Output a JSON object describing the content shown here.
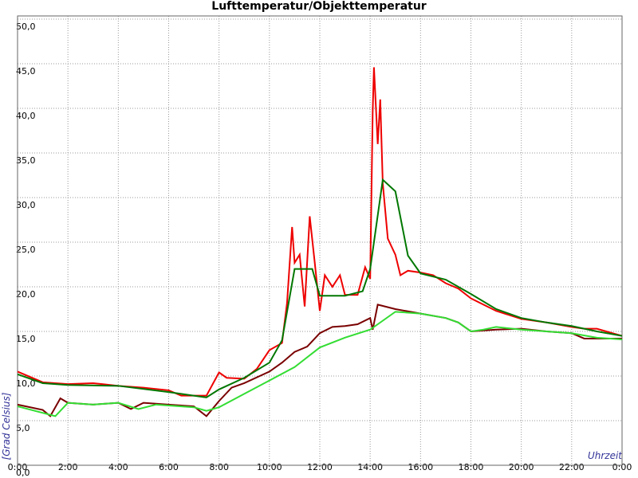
{
  "chart_data": {
    "type": "line",
    "title": "Lufttemperatur/Objekttemperatur",
    "ylabel": "[Grad Celsius]",
    "xlabel": "Uhrzeit",
    "xlim": [
      0,
      24
    ],
    "ylim": [
      0,
      50
    ],
    "grid": true,
    "xticks": [
      {
        "value": 0,
        "label": "0:00"
      },
      {
        "value": 2,
        "label": "2:00"
      },
      {
        "value": 4,
        "label": "4:00"
      },
      {
        "value": 6,
        "label": "6:00"
      },
      {
        "value": 8,
        "label": "8:00"
      },
      {
        "value": 10,
        "label": "10:00"
      },
      {
        "value": 12,
        "label": "12:00"
      },
      {
        "value": 14,
        "label": "14:00"
      },
      {
        "value": 16,
        "label": "16:00"
      },
      {
        "value": 18,
        "label": "18:00"
      },
      {
        "value": 20,
        "label": "20:00"
      },
      {
        "value": 22,
        "label": "22:00"
      },
      {
        "value": 24,
        "label": "0:00"
      }
    ],
    "yticks": [
      {
        "value": 0,
        "label": "0,0"
      },
      {
        "value": 5,
        "label": "5,0"
      },
      {
        "value": 10,
        "label": "10,0"
      },
      {
        "value": 15,
        "label": "15,0"
      },
      {
        "value": 20,
        "label": "20,0"
      },
      {
        "value": 25,
        "label": "25,0"
      },
      {
        "value": 30,
        "label": "30,0"
      },
      {
        "value": 35,
        "label": "35,0"
      },
      {
        "value": 40,
        "label": "40,0"
      },
      {
        "value": 45,
        "label": "45,0"
      },
      {
        "value": 50,
        "label": "50,0"
      }
    ],
    "series": [
      {
        "color": "#ee0000",
        "x": [
          0,
          1,
          2,
          3,
          4,
          5,
          6,
          6.5,
          7.5,
          8,
          8.3,
          9,
          9.5,
          10,
          10.5,
          10.7,
          10.9,
          11,
          11.2,
          11.4,
          11.6,
          11.8,
          12,
          12.2,
          12.5,
          12.8,
          13,
          13.5,
          13.8,
          14,
          14.1,
          14.15,
          14.3,
          14.4,
          14.5,
          14.7,
          15,
          15.2,
          15.5,
          16,
          16.5,
          17,
          17.5,
          18,
          19,
          20,
          21,
          22,
          22.5,
          23,
          24
        ],
        "values": [
          10.5,
          9.3,
          9.1,
          9.2,
          8.9,
          8.7,
          8.4,
          7.8,
          7.8,
          10.4,
          9.8,
          9.7,
          10.8,
          12.9,
          13.7,
          18.2,
          26.7,
          22.7,
          23.6,
          17.8,
          27.9,
          22.7,
          17.3,
          21.3,
          20,
          21.3,
          19.1,
          19.1,
          22.2,
          20.9,
          39.6,
          44.6,
          36,
          41,
          31.6,
          25.4,
          23.6,
          21.3,
          21.8,
          21.6,
          21.3,
          20.4,
          19.8,
          18.7,
          17.3,
          16.4,
          16,
          15.5,
          15.3,
          15.3,
          14.5
        ]
      },
      {
        "color": "#007700",
        "x": [
          0,
          1,
          2,
          4,
          6,
          7.5,
          8,
          9,
          10,
          10.5,
          11,
          11.7,
          12,
          13,
          13.7,
          14,
          14.5,
          15,
          15.5,
          16,
          17,
          18,
          19,
          20,
          21,
          22,
          23,
          24
        ],
        "values": [
          10.2,
          9.2,
          9,
          8.9,
          8.2,
          7.6,
          8.5,
          9.8,
          11.5,
          14,
          22,
          22,
          19,
          19,
          19.5,
          22,
          32,
          30.7,
          23.5,
          21.5,
          20.8,
          19.2,
          17.5,
          16.5,
          16,
          15.6,
          15,
          14.5
        ]
      },
      {
        "color": "#7a0000",
        "x": [
          0,
          1,
          1.3,
          1.7,
          2,
          3,
          4,
          4.5,
          5,
          6,
          7,
          7.5,
          8,
          8.5,
          9,
          10,
          10.5,
          11,
          11.5,
          12,
          12.5,
          13,
          13.5,
          14,
          14.1,
          14.3,
          15,
          16,
          17,
          17.5,
          18,
          19,
          20,
          21,
          22,
          22.5,
          23,
          24
        ],
        "values": [
          6.8,
          6.2,
          5.5,
          7.5,
          7,
          6.8,
          7,
          6.3,
          7,
          6.8,
          6.6,
          5.5,
          7.2,
          8.7,
          9.2,
          10.5,
          11.5,
          12.7,
          13.3,
          14.8,
          15.5,
          15.6,
          15.8,
          16.5,
          15.2,
          18,
          17.5,
          17,
          16.5,
          16,
          15,
          15.2,
          15.3,
          15,
          14.8,
          14.2,
          14.2,
          14.2
        ]
      },
      {
        "color": "#33dd33",
        "x": [
          0,
          1.5,
          2,
          3,
          4,
          4.8,
          5.5,
          6,
          7,
          7.5,
          8,
          9,
          10,
          11,
          12,
          13,
          14,
          15,
          16,
          17,
          17.5,
          18,
          18.5,
          19,
          20,
          21,
          22,
          23,
          24
        ],
        "values": [
          6.6,
          5.5,
          7,
          6.8,
          7,
          6.3,
          6.8,
          6.7,
          6.5,
          6.1,
          6.5,
          8,
          9.5,
          11,
          13.2,
          14.3,
          15.2,
          17.2,
          17,
          16.5,
          16,
          15,
          15.2,
          15.5,
          15.2,
          15,
          14.8,
          14.3,
          14.1
        ]
      }
    ]
  }
}
